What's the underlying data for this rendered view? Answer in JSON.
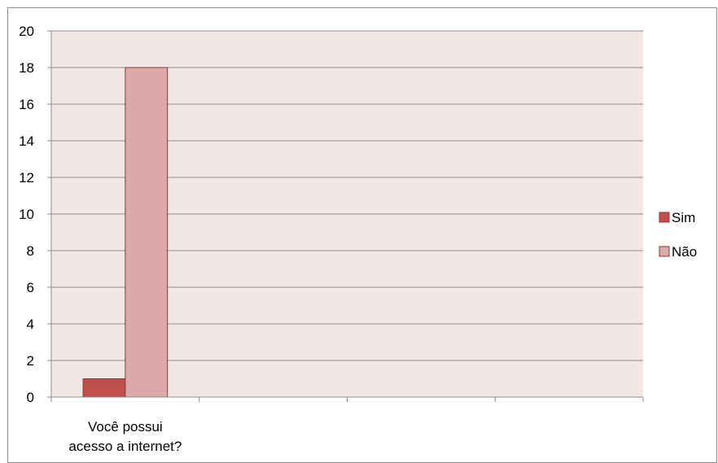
{
  "chart_data": {
    "type": "bar",
    "categories": [
      "Você possui acesso a internet?",
      "",
      "",
      ""
    ],
    "category_lines": [
      [
        "Você possui",
        "acesso a internet?"
      ],
      [],
      [],
      []
    ],
    "series": [
      {
        "name": "Sim",
        "values": [
          1,
          null,
          null,
          null
        ],
        "color": "#c0504d"
      },
      {
        "name": "Não",
        "values": [
          18,
          null,
          null,
          null
        ],
        "color": "#dba9aa"
      }
    ],
    "ylim": [
      0,
      20
    ],
    "yticks": [
      0,
      2,
      4,
      6,
      8,
      10,
      12,
      14,
      16,
      18,
      20
    ],
    "grid": true,
    "legend_position": "right",
    "plot_background": "#f2e6e6",
    "bar_border_color": "#8b3a3a",
    "title": "",
    "xlabel": "",
    "ylabel": ""
  }
}
